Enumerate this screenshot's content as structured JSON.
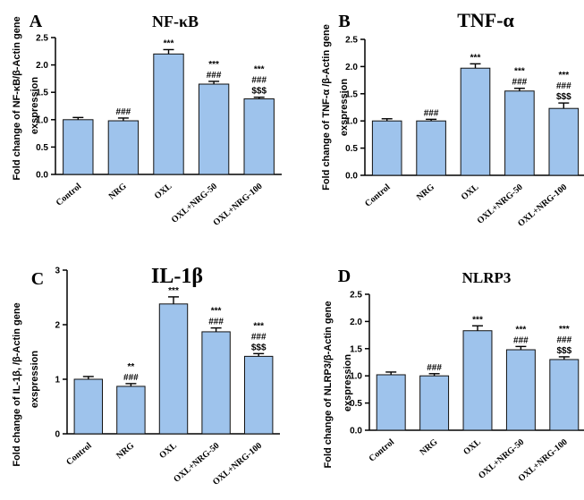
{
  "colors": {
    "bar": "#9ec3ec",
    "axis": "#000000"
  },
  "chart_data": [
    {
      "type": "bar",
      "panel": "A",
      "title": "NF-κB",
      "ylabel_line1": "Fold change of NF-κB/β-Actin gene",
      "ylabel_line2": "exspression",
      "categories": [
        "Control",
        "NRG",
        "OXL",
        "OXL+NRG-50",
        "OXL+NRG-100"
      ],
      "values": [
        1.0,
        0.98,
        2.2,
        1.65,
        1.38
      ],
      "errors": [
        0.04,
        0.05,
        0.08,
        0.05,
        0.03
      ],
      "ylim": [
        0,
        2.5
      ],
      "yticks": [
        "0.0",
        "0.5",
        "1.0",
        "1.5",
        "2.0",
        "2.5"
      ],
      "significance": [
        [],
        [
          "###"
        ],
        [
          "***"
        ],
        [
          "***",
          "###"
        ],
        [
          "***",
          "###",
          "$$$"
        ]
      ]
    },
    {
      "type": "bar",
      "panel": "B",
      "title": "TNF-α",
      "ylabel_line1": "Fold change of TNF-α /β-Actin gene",
      "ylabel_line2": "exspression",
      "categories": [
        "Control",
        "NRG",
        "OXL",
        "OXL+NRG-50",
        "OXL+NRG-100"
      ],
      "values": [
        1.0,
        1.0,
        1.97,
        1.55,
        1.23
      ],
      "errors": [
        0.04,
        0.03,
        0.08,
        0.05,
        0.1
      ],
      "ylim": [
        0,
        2.5
      ],
      "yticks": [
        "0.0",
        "0.5",
        "1.0",
        "1.5",
        "2.0",
        "2.5"
      ],
      "significance": [
        [],
        [
          "###"
        ],
        [
          "***"
        ],
        [
          "***",
          "###"
        ],
        [
          "***",
          "###",
          "$$$"
        ]
      ]
    },
    {
      "type": "bar",
      "panel": "C",
      "title": "IL-1β",
      "ylabel_line1": "Fold change of IL-1β, /β-Actin gene",
      "ylabel_line2": "exspression",
      "categories": [
        "Control",
        "NRG",
        "OXL",
        "OXL+NRG-50",
        "OXL+NRG-100"
      ],
      "values": [
        1.0,
        0.87,
        2.38,
        1.87,
        1.42
      ],
      "errors": [
        0.05,
        0.05,
        0.13,
        0.07,
        0.05
      ],
      "ylim": [
        0,
        3
      ],
      "yticks": [
        "0",
        "1",
        "2",
        "3"
      ],
      "significance": [
        [],
        [
          "**",
          "###"
        ],
        [
          "***"
        ],
        [
          "***",
          "###"
        ],
        [
          "***",
          "###",
          "$$$"
        ]
      ]
    },
    {
      "type": "bar",
      "panel": "D",
      "title": "NLRP3",
      "ylabel_line1": "Fold change of NLRP3/β-Actin gene",
      "ylabel_line2": "exspression",
      "categories": [
        "Control",
        "NRG",
        "OXL",
        "OXL+NRG-50",
        "OXL+NRG-100"
      ],
      "values": [
        1.02,
        1.0,
        1.83,
        1.48,
        1.3
      ],
      "errors": [
        0.05,
        0.04,
        0.09,
        0.06,
        0.05
      ],
      "ylim": [
        0,
        2.5
      ],
      "yticks": [
        "0.0",
        "0.5",
        "1.0",
        "1.5",
        "2.0",
        "2.5"
      ],
      "significance": [
        [],
        [
          "###"
        ],
        [
          "***"
        ],
        [
          "***",
          "###"
        ],
        [
          "***",
          "###",
          "$$$"
        ]
      ]
    }
  ]
}
